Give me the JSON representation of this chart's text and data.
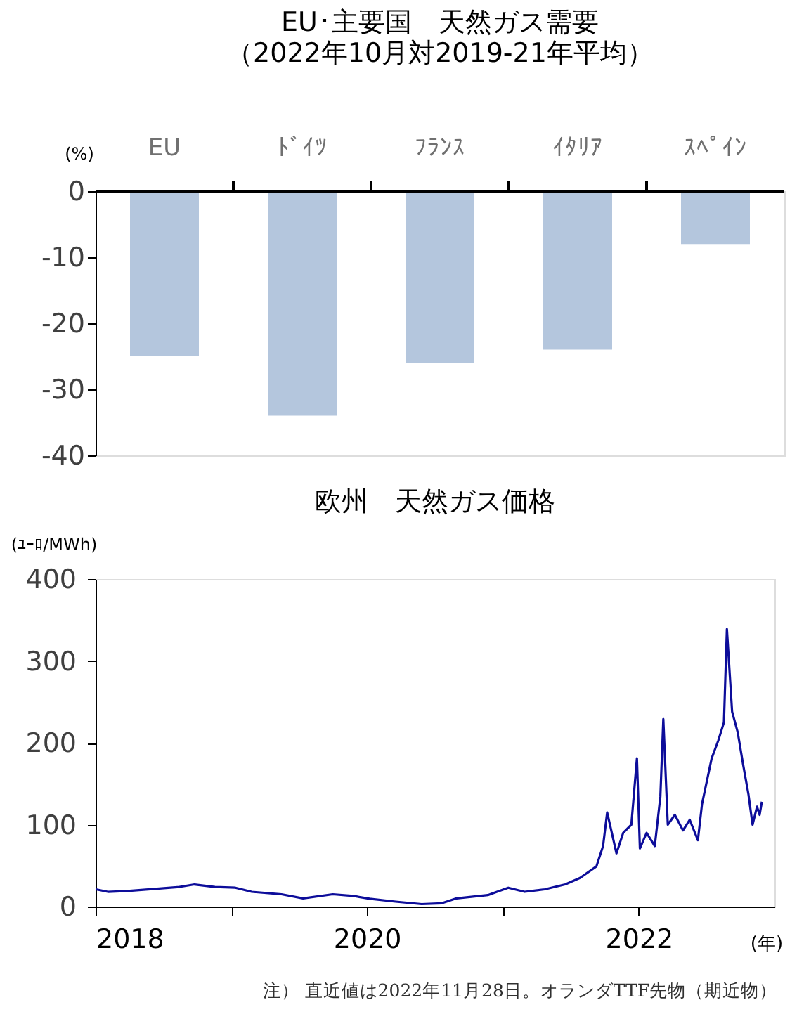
{
  "chart_data": [
    {
      "type": "bar",
      "title": "EU･主要国　天然ガス需要",
      "subtitle": "（2022年10月対2019-21年平均）",
      "ylabel": "(%)",
      "categories": [
        "EU",
        "ﾄﾞｲﾂ",
        "ﾌﾗﾝｽ",
        "ｲﾀﾘｱ",
        "ｽﾍﾟｲﾝ"
      ],
      "values": [
        -25,
        -34,
        -26,
        -24,
        -8
      ],
      "color": "#b4c6dd",
      "ylim": [
        -40,
        0
      ],
      "yticks": [
        0,
        -10,
        -20,
        -30,
        -40
      ],
      "grid": false
    },
    {
      "type": "line",
      "title": "欧州　天然ガス価格",
      "ylabel": "(ﾕｰﾛ/MWh)",
      "xlabel": "(年)",
      "annotations": [
        "注） 直近値は2022年11月28日。オランダTTF先物（期近物）"
      ],
      "xlim": [
        "2018-01-01",
        "2023-01-01"
      ],
      "xticks": [
        {
          "value": "2018-01-01",
          "label": "2018"
        },
        {
          "value": "2019-01-01",
          "label": null
        },
        {
          "value": "2020-01-01",
          "label": "2020"
        },
        {
          "value": "2021-01-01",
          "label": null
        },
        {
          "value": "2022-01-01",
          "label": "2022"
        }
      ],
      "ylim": [
        0,
        400
      ],
      "yticks": [
        0,
        100,
        200,
        300,
        400
      ],
      "grid": false,
      "marker": "none",
      "line_style": "solid",
      "x": [
        "2018-01-02",
        "2018-02-03",
        "2018-03-28",
        "2018-05-22",
        "2018-08-15",
        "2018-09-24",
        "2018-11-18",
        "2019-01-12",
        "2019-02-25",
        "2019-05-16",
        "2019-07-13",
        "2019-10-01",
        "2019-11-25",
        "2020-01-08",
        "2020-03-18",
        "2020-05-27",
        "2020-07-20",
        "2020-08-29",
        "2020-11-21",
        "2021-01-15",
        "2021-02-28",
        "2021-04-23",
        "2021-06-17",
        "2021-07-27",
        "2021-09-09",
        "2021-09-27",
        "2021-10-08",
        "2021-10-19",
        "2021-11-02",
        "2021-11-20",
        "2021-12-12",
        "2021-12-27",
        "2022-01-04",
        "2022-01-22",
        "2022-02-13",
        "2022-02-28",
        "2022-03-08",
        "2022-03-20",
        "2022-04-08",
        "2022-04-30",
        "2022-05-18",
        "2022-06-09",
        "2022-06-20",
        "2022-07-16",
        "2022-08-03",
        "2022-08-18",
        "2022-08-26",
        "2022-09-09",
        "2022-09-24",
        "2022-10-08",
        "2022-10-23",
        "2022-11-03",
        "2022-11-15",
        "2022-11-22",
        "2022-11-28"
      ],
      "series": [
        {
          "color": "#0d0d9a",
          "values": [
            21,
            18,
            19,
            21,
            24,
            27,
            24,
            23,
            18,
            15,
            10,
            15,
            13,
            9.5,
            6,
            3,
            4,
            10,
            14,
            23,
            18,
            21,
            27,
            35,
            49,
            74,
            115,
            93,
            65,
            90,
            100,
            181,
            71,
            90,
            74,
            134,
            229,
            100,
            112,
            93,
            106,
            81,
            125,
            181,
            203,
            225,
            339,
            238,
            213,
            175,
            137,
            100,
            122,
            112,
            128
          ]
        }
      ]
    }
  ]
}
